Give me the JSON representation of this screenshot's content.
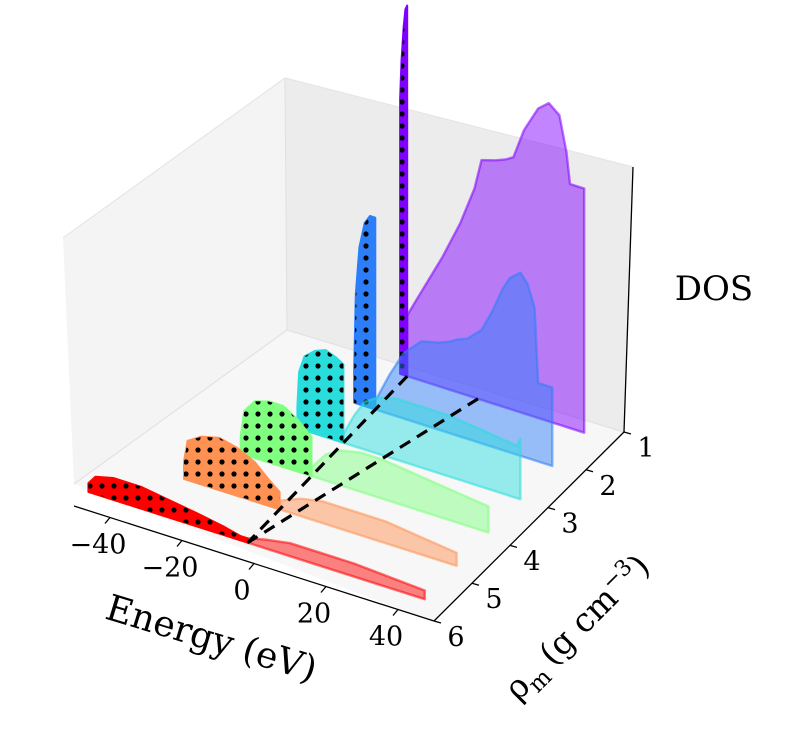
{
  "chart_data": {
    "type": "3d-filled-density-of-states",
    "xlabel": "Energy (eV)",
    "ylabel_symbol": "ρ",
    "ylabel_subscript": "m",
    "ylabel_unit_open": "(g cm",
    "ylabel_exponent": "−3",
    "ylabel_unit_close": ")",
    "zlabel": "DOS",
    "x_ticks": [
      {
        "value": -40,
        "label": "−40"
      },
      {
        "value": -20,
        "label": "−20"
      },
      {
        "value": 0,
        "label": "0"
      },
      {
        "value": 20,
        "label": "20"
      },
      {
        "value": 40,
        "label": "40"
      }
    ],
    "y_ticks": [
      {
        "value": 1,
        "label": "1"
      },
      {
        "value": 2,
        "label": "2"
      },
      {
        "value": 3,
        "label": "3"
      },
      {
        "value": 4,
        "label": "4"
      },
      {
        "value": 5,
        "label": "5"
      },
      {
        "value": 6,
        "label": "6"
      }
    ],
    "x_range": [
      -50,
      50
    ],
    "y_range": [
      1,
      6
    ],
    "z_range": [
      0,
      1
    ],
    "grid": false,
    "series": [
      {
        "density": 1,
        "color": "#8000ff",
        "occupied": [
          [
            -2.0,
            0.63
          ],
          [
            -1.6,
            0.72
          ],
          [
            -1.0,
            0.8
          ],
          [
            -0.5,
            0.84
          ],
          [
            0,
            0.85
          ]
        ],
        "free": [
          [
            0,
            0.14
          ],
          [
            5,
            0.22
          ],
          [
            10,
            0.3
          ],
          [
            15,
            0.39
          ],
          [
            19,
            0.48
          ],
          [
            21,
            0.55
          ],
          [
            25,
            0.56
          ],
          [
            28,
            0.57
          ],
          [
            30,
            0.58
          ],
          [
            33,
            0.65
          ],
          [
            37,
            0.71
          ],
          [
            40,
            0.73
          ],
          [
            43,
            0.71
          ],
          [
            45,
            0.63
          ],
          [
            46,
            0.56
          ],
          [
            48,
            0.56
          ],
          [
            50,
            0.56
          ]
        ]
      },
      {
        "density": 2,
        "color": "#2c7ef8",
        "occupied": [
          [
            -6,
            0.07
          ],
          [
            -5.5,
            0.25
          ],
          [
            -4.5,
            0.36
          ],
          [
            -3,
            0.42
          ],
          [
            -1.5,
            0.44
          ],
          [
            0,
            0.44
          ]
        ],
        "free": [
          [
            0,
            0.02
          ],
          [
            4,
            0.09
          ],
          [
            8,
            0.15
          ],
          [
            13,
            0.19
          ],
          [
            18,
            0.2
          ],
          [
            21,
            0.21
          ],
          [
            23,
            0.22
          ],
          [
            26,
            0.23
          ],
          [
            30,
            0.26
          ],
          [
            33,
            0.31
          ],
          [
            36,
            0.37
          ],
          [
            38,
            0.4
          ],
          [
            41,
            0.42
          ],
          [
            43,
            0.4
          ],
          [
            45,
            0.35
          ],
          [
            46,
            0.18
          ],
          [
            48,
            0.18
          ],
          [
            50,
            0.18
          ]
        ]
      },
      {
        "density": 3,
        "color": "#2adddd",
        "occupied": [
          [
            -13,
            0.05
          ],
          [
            -12.5,
            0.13
          ],
          [
            -11,
            0.17
          ],
          [
            -8,
            0.19
          ],
          [
            -5,
            0.2
          ],
          [
            -2,
            0.19
          ],
          [
            0,
            0.18
          ]
        ],
        "free": [
          [
            0,
            0.02
          ],
          [
            3,
            0.07
          ],
          [
            6,
            0.11
          ],
          [
            10,
            0.13
          ],
          [
            15,
            0.14
          ],
          [
            20,
            0.14
          ],
          [
            30,
            0.14
          ],
          [
            40,
            0.13
          ],
          [
            49,
            0.12
          ],
          [
            49.5,
            0.13
          ],
          [
            50,
            0.14
          ]
        ]
      },
      {
        "density": 4,
        "color": "#80ff80",
        "occupied": [
          [
            -20,
            0.04
          ],
          [
            -19,
            0.1
          ],
          [
            -16,
            0.13
          ],
          [
            -12,
            0.14
          ],
          [
            -8,
            0.14
          ],
          [
            -4,
            0.12
          ],
          [
            0,
            0.09
          ]
        ],
        "free": [
          [
            0,
            0.02
          ],
          [
            4,
            0.06
          ],
          [
            8,
            0.08
          ],
          [
            14,
            0.09
          ],
          [
            20,
            0.09
          ],
          [
            30,
            0.08
          ],
          [
            40,
            0.07
          ],
          [
            50,
            0.06
          ]
        ]
      },
      {
        "density": 5,
        "color": "#ff9152",
        "occupied": [
          [
            -27,
            0.04
          ],
          [
            -26,
            0.09
          ],
          [
            -22,
            0.11
          ],
          [
            -17,
            0.12
          ],
          [
            -12,
            0.11
          ],
          [
            -7,
            0.09
          ],
          [
            -3,
            0.06
          ],
          [
            0,
            0.04
          ]
        ],
        "free": [
          [
            0,
            0.02
          ],
          [
            6,
            0.04
          ],
          [
            12,
            0.05
          ],
          [
            20,
            0.05
          ],
          [
            30,
            0.05
          ],
          [
            40,
            0.04
          ],
          [
            50,
            0.03
          ]
        ]
      },
      {
        "density": 6,
        "color": "#ff0000",
        "occupied": [
          [
            -45,
            0.02
          ],
          [
            -43,
            0.04
          ],
          [
            -38,
            0.05
          ],
          [
            -30,
            0.05
          ],
          [
            -22,
            0.04
          ],
          [
            -14,
            0.03
          ],
          [
            -7,
            0.02
          ],
          [
            -2,
            0.01
          ],
          [
            0,
            0.01
          ]
        ],
        "free": [
          [
            0,
            0.01
          ],
          [
            5,
            0.02
          ],
          [
            12,
            0.03
          ],
          [
            20,
            0.03
          ],
          [
            30,
            0.03
          ],
          [
            40,
            0.025
          ],
          [
            50,
            0.02
          ]
        ]
      }
    ],
    "fermi_lines": [
      {
        "from": [
          0,
          1
        ],
        "to": [
          0,
          6
        ],
        "style": "dashed"
      },
      {
        "from": [
          20,
          1
        ],
        "to": [
          0,
          6
        ],
        "style": "dashed"
      }
    ]
  }
}
